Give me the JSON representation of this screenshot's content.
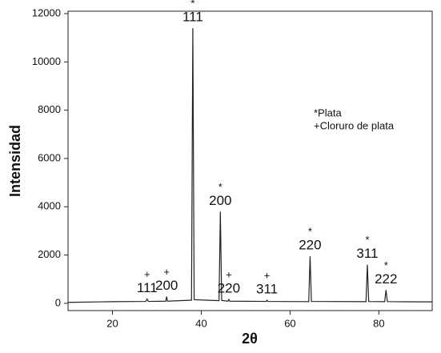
{
  "chart_data": {
    "type": "line",
    "x_label": "2θ",
    "y_label": "Intensidad",
    "x": [
      10,
      20,
      27.5,
      27.8,
      28.1,
      32.0,
      32.2,
      32.4,
      37.8,
      38.1,
      38.4,
      44.0,
      44.3,
      44.6,
      46.0,
      46.2,
      46.4,
      54.6,
      54.8,
      55.0,
      64.2,
      64.5,
      64.8,
      77.1,
      77.4,
      77.7,
      81.3,
      81.6,
      81.9,
      92
    ],
    "values": [
      40,
      70,
      80,
      180,
      80,
      90,
      280,
      90,
      130,
      11400,
      150,
      110,
      3800,
      120,
      90,
      160,
      90,
      80,
      130,
      80,
      70,
      1950,
      80,
      70,
      1600,
      75,
      70,
      550,
      70,
      60
    ],
    "color": "#222222",
    "xlim": [
      10,
      92
    ],
    "xticks": [
      20,
      40,
      60,
      80
    ],
    "ylim": [
      -300,
      12100
    ],
    "yticks": [
      0,
      2000,
      4000,
      6000,
      8000,
      10000,
      12000
    ],
    "annotations": [
      {
        "x": 27.8,
        "marker": "+",
        "text": "111"
      },
      {
        "x": 32.2,
        "marker": "+",
        "text": "200"
      },
      {
        "x": 38.1,
        "marker": "*",
        "text": "111"
      },
      {
        "x": 44.3,
        "marker": "*",
        "text": "200"
      },
      {
        "x": 46.2,
        "marker": "+",
        "text": "220"
      },
      {
        "x": 54.8,
        "marker": "+",
        "text": "311"
      },
      {
        "x": 64.5,
        "marker": "*",
        "text": "220"
      },
      {
        "x": 77.4,
        "marker": "*",
        "text": "311"
      },
      {
        "x": 81.6,
        "marker": "*",
        "text": "222"
      }
    ],
    "notes": [
      "*Plata",
      "+Cloruro de plata"
    ]
  }
}
